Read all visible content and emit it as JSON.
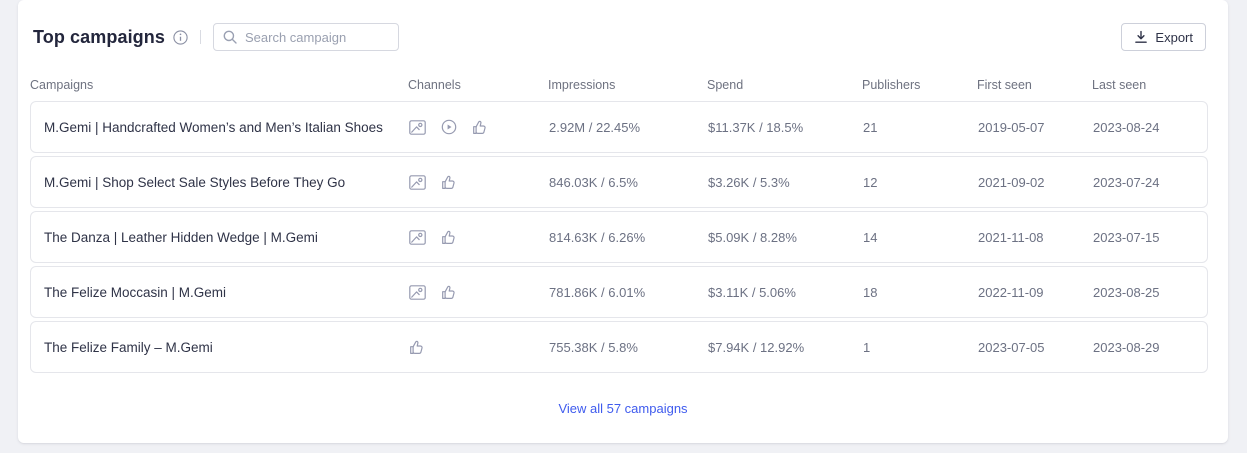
{
  "header": {
    "title": "Top campaigns",
    "search": {
      "placeholder": "Search campaign"
    },
    "export_label": "Export"
  },
  "table": {
    "columns": [
      "Campaigns",
      "Channels",
      "Impressions",
      "Spend",
      "Publishers",
      "First seen",
      "Last seen"
    ],
    "channel_icon_names": {
      "image": "image-icon",
      "video": "video-play-icon",
      "thumbs-up": "thumbs-up-icon"
    },
    "rows": [
      {
        "campaign": "M.Gemi | Handcrafted Women’s and Men’s Italian Shoes",
        "channels": [
          "image",
          "video",
          "thumbs-up"
        ],
        "impressions": "2.92M / 22.45%",
        "spend": "$11.37K / 18.5%",
        "publishers": "21",
        "first_seen": "2019-05-07",
        "last_seen": "2023-08-24"
      },
      {
        "campaign": "M.Gemi | Shop Select Sale Styles Before They Go",
        "channels": [
          "image",
          "thumbs-up"
        ],
        "impressions": "846.03K / 6.5%",
        "spend": "$3.26K / 5.3%",
        "publishers": "12",
        "first_seen": "2021-09-02",
        "last_seen": "2023-07-24"
      },
      {
        "campaign": "The Danza | Leather Hidden Wedge | M.Gemi",
        "channels": [
          "image",
          "thumbs-up"
        ],
        "impressions": "814.63K / 6.26%",
        "spend": "$5.09K / 8.28%",
        "publishers": "14",
        "first_seen": "2021-11-08",
        "last_seen": "2023-07-15"
      },
      {
        "campaign": "The Felize Moccasin | M.Gemi",
        "channels": [
          "image",
          "thumbs-up"
        ],
        "impressions": "781.86K / 6.01%",
        "spend": "$3.11K / 5.06%",
        "publishers": "18",
        "first_seen": "2022-11-09",
        "last_seen": "2023-08-25"
      },
      {
        "campaign": "The Felize Family – M.Gemi",
        "channels": [
          "thumbs-up"
        ],
        "impressions": "755.38K / 5.8%",
        "spend": "$7.94K / 12.92%",
        "publishers": "1",
        "first_seen": "2023-07-05",
        "last_seen": "2023-08-29"
      }
    ],
    "footer_link": "View all 57 campaigns"
  },
  "colors": {
    "link_blue": "#3f5bee",
    "title_text": "#23263c",
    "muted_text": "#6c7183",
    "row_border": "#e5e6eb",
    "page_background": "#f0f1f5",
    "icon_gray": "#969ab0"
  }
}
